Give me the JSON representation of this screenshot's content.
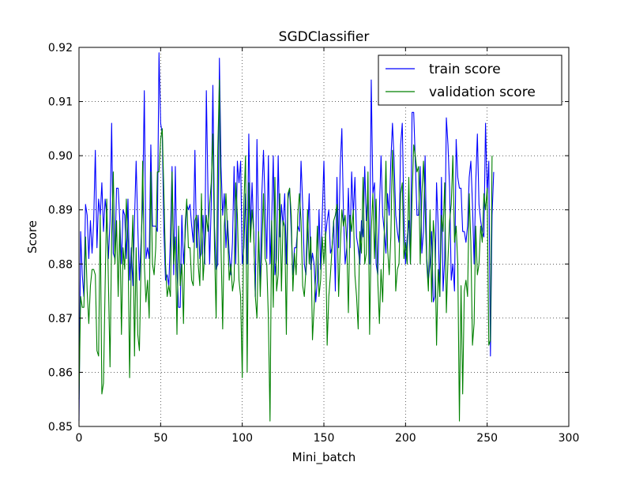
{
  "chart_data": {
    "type": "line",
    "title": "SGDClassifier",
    "xlabel": "Mini_batch",
    "ylabel": "Score",
    "xlim": [
      0,
      300
    ],
    "ylim": [
      0.85,
      0.92
    ],
    "x_ticks": [
      0,
      50,
      100,
      150,
      200,
      250,
      300
    ],
    "y_ticks": [
      0.85,
      0.86,
      0.87,
      0.88,
      0.89,
      0.9,
      0.91,
      0.92
    ],
    "x_tick_labels": [
      "0",
      "50",
      "100",
      "150",
      "200",
      "250",
      "300"
    ],
    "y_tick_labels": [
      "0.85",
      "0.86",
      "0.87",
      "0.88",
      "0.89",
      "0.90",
      "0.91",
      "0.92"
    ],
    "grid": true,
    "legend_position": "top-right",
    "x_start": 0,
    "x_step": 1,
    "series": [
      {
        "name": "train score",
        "color": "#0000ff",
        "values": [
          0.851,
          0.886,
          0.878,
          0.874,
          0.891,
          0.889,
          0.881,
          0.888,
          0.882,
          0.888,
          0.901,
          0.883,
          0.892,
          0.889,
          0.895,
          0.886,
          0.892,
          0.889,
          0.881,
          0.888,
          0.906,
          0.882,
          0.881,
          0.894,
          0.894,
          0.888,
          0.88,
          0.89,
          0.889,
          0.881,
          0.892,
          0.877,
          0.883,
          0.876,
          0.888,
          0.899,
          0.887,
          0.877,
          0.884,
          0.891,
          0.912,
          0.881,
          0.883,
          0.881,
          0.902,
          0.887,
          0.887,
          0.887,
          0.886,
          0.919,
          0.906,
          0.904,
          0.886,
          0.877,
          0.878,
          0.876,
          0.885,
          0.898,
          0.878,
          0.898,
          0.879,
          0.872,
          0.872,
          0.889,
          0.88,
          0.885,
          0.891,
          0.89,
          0.891,
          0.887,
          0.884,
          0.901,
          0.883,
          0.889,
          0.881,
          0.882,
          0.889,
          0.88,
          0.912,
          0.893,
          0.88,
          0.891,
          0.913,
          0.887,
          0.879,
          0.88,
          0.918,
          0.898,
          0.889,
          0.893,
          0.883,
          0.888,
          0.882,
          0.878,
          0.884,
          0.898,
          0.88,
          0.899,
          0.895,
          0.899,
          0.88,
          0.883,
          0.893,
          0.88,
          0.904,
          0.886,
          0.895,
          0.886,
          0.874,
          0.903,
          0.886,
          0.876,
          0.893,
          0.901,
          0.891,
          0.881,
          0.9,
          0.88,
          0.888,
          0.9,
          0.878,
          0.881,
          0.9,
          0.885,
          0.891,
          0.887,
          0.893,
          0.88,
          0.892,
          0.894,
          0.886,
          0.878,
          0.883,
          0.883,
          0.887,
          0.886,
          0.899,
          0.891,
          0.88,
          0.878,
          0.885,
          0.893,
          0.879,
          0.882,
          0.88,
          0.873,
          0.877,
          0.89,
          0.879,
          0.889,
          0.899,
          0.885,
          0.888,
          0.89,
          0.882,
          0.883,
          0.888,
          0.875,
          0.896,
          0.883,
          0.898,
          0.905,
          0.889,
          0.88,
          0.883,
          0.894,
          0.883,
          0.897,
          0.889,
          0.896,
          0.885,
          0.883,
          0.88,
          0.888,
          0.885,
          0.898,
          0.888,
          0.893,
          0.88,
          0.914,
          0.893,
          0.895,
          0.88,
          0.878,
          0.89,
          0.9,
          0.889,
          0.886,
          0.882,
          0.893,
          0.889,
          0.899,
          0.906,
          0.899,
          0.889,
          0.886,
          0.884,
          0.902,
          0.906,
          0.889,
          0.88,
          0.885,
          0.888,
          0.88,
          0.908,
          0.908,
          0.899,
          0.889,
          0.889,
          0.898,
          0.882,
          0.886,
          0.9,
          0.881,
          0.877,
          0.88,
          0.886,
          0.873,
          0.874,
          0.895,
          0.887,
          0.874,
          0.896,
          0.875,
          0.881,
          0.907,
          0.902,
          0.894,
          0.877,
          0.88,
          0.875,
          0.903,
          0.896,
          0.894,
          0.894,
          0.886,
          0.886,
          0.884,
          0.887,
          0.896,
          0.899,
          0.891,
          0.88,
          0.895,
          0.904,
          0.891,
          0.888,
          0.886,
          0.885,
          0.906,
          0.893,
          0.899,
          0.863,
          0.889,
          0.897
        ]
      },
      {
        "name": "validation score",
        "color": "#008000",
        "values": [
          0.855,
          0.874,
          0.872,
          0.872,
          0.885,
          0.875,
          0.869,
          0.876,
          0.879,
          0.879,
          0.878,
          0.864,
          0.863,
          0.889,
          0.856,
          0.858,
          0.876,
          0.892,
          0.877,
          0.861,
          0.885,
          0.897,
          0.88,
          0.888,
          0.874,
          0.888,
          0.867,
          0.883,
          0.879,
          0.892,
          0.884,
          0.859,
          0.88,
          0.889,
          0.863,
          0.883,
          0.867,
          0.864,
          0.88,
          0.899,
          0.88,
          0.873,
          0.877,
          0.87,
          0.897,
          0.88,
          0.878,
          0.883,
          0.897,
          0.897,
          0.903,
          0.905,
          0.893,
          0.88,
          0.874,
          0.876,
          0.874,
          0.897,
          0.88,
          0.885,
          0.867,
          0.887,
          0.876,
          0.88,
          0.869,
          0.887,
          0.892,
          0.883,
          0.883,
          0.877,
          0.876,
          0.888,
          0.889,
          0.88,
          0.876,
          0.893,
          0.877,
          0.882,
          0.889,
          0.886,
          0.891,
          0.895,
          0.904,
          0.883,
          0.87,
          0.901,
          0.914,
          0.883,
          0.868,
          0.887,
          0.893,
          0.886,
          0.877,
          0.88,
          0.875,
          0.877,
          0.895,
          0.889,
          0.877,
          0.874,
          0.859,
          0.891,
          0.9,
          0.86,
          0.895,
          0.884,
          0.89,
          0.886,
          0.874,
          0.87,
          0.886,
          0.874,
          0.883,
          0.893,
          0.881,
          0.88,
          0.87,
          0.851,
          0.888,
          0.872,
          0.896,
          0.875,
          0.878,
          0.893,
          0.875,
          0.888,
          0.887,
          0.867,
          0.893,
          0.894,
          0.889,
          0.875,
          0.882,
          0.878,
          0.889,
          0.893,
          0.888,
          0.876,
          0.874,
          0.879,
          0.89,
          0.88,
          0.885,
          0.866,
          0.872,
          0.878,
          0.887,
          0.874,
          0.877,
          0.885,
          0.88,
          0.886,
          0.865,
          0.874,
          0.878,
          0.883,
          0.888,
          0.889,
          0.891,
          0.874,
          0.883,
          0.89,
          0.887,
          0.889,
          0.884,
          0.871,
          0.889,
          0.886,
          0.89,
          0.878,
          0.874,
          0.868,
          0.886,
          0.882,
          0.896,
          0.88,
          0.882,
          0.897,
          0.867,
          0.886,
          0.893,
          0.881,
          0.892,
          0.877,
          0.869,
          0.879,
          0.873,
          0.886,
          0.899,
          0.883,
          0.878,
          0.885,
          0.901,
          0.892,
          0.875,
          0.879,
          0.88,
          0.893,
          0.895,
          0.881,
          0.884,
          0.88,
          0.896,
          0.88,
          0.892,
          0.902,
          0.9,
          0.897,
          0.898,
          0.88,
          0.893,
          0.899,
          0.89,
          0.88,
          0.875,
          0.89,
          0.873,
          0.888,
          0.884,
          0.865,
          0.879,
          0.874,
          0.889,
          0.886,
          0.895,
          0.871,
          0.881,
          0.888,
          0.891,
          0.9,
          0.884,
          0.887,
          0.88,
          0.851,
          0.876,
          0.856,
          0.875,
          0.877,
          0.874,
          0.893,
          0.884,
          0.865,
          0.869,
          0.887,
          0.878,
          0.88,
          0.887,
          0.884,
          0.893,
          0.89,
          0.894,
          0.865,
          0.866,
          0.9
        ]
      }
    ]
  }
}
